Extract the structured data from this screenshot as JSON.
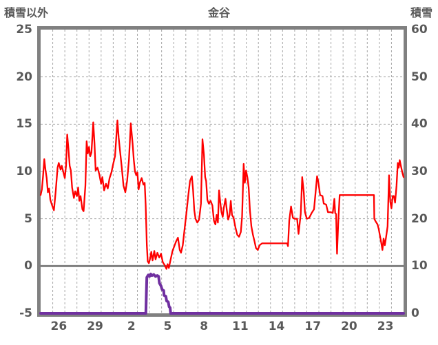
{
  "chart_data": {
    "type": "line",
    "title": "金谷",
    "left_axis": {
      "label": "積雪以外",
      "min": -5,
      "max": 25,
      "ticks": [
        25,
        20,
        15,
        10,
        5,
        0,
        -5
      ]
    },
    "right_axis": {
      "label": "積雪",
      "min": 0,
      "max": 60,
      "ticks": [
        60,
        50,
        40,
        30,
        20,
        10,
        0
      ]
    },
    "x_axis": {
      "days_total": 30,
      "tick_labels": [
        "26",
        "29",
        "2",
        "5",
        "8",
        "11",
        "14",
        "17",
        "20",
        "23"
      ],
      "tick_offsets": [
        1.5,
        4.5,
        7.5,
        10.5,
        13.5,
        16.5,
        19.5,
        22.5,
        25.5,
        28.5
      ],
      "grid_every_days": 1
    },
    "grid": {
      "on": true,
      "zero_line_left_value": 0
    },
    "colors": {
      "temperature": "#fe0000",
      "snow": "#7030a0",
      "frame": "#808080",
      "gridline": "#a6a6a6",
      "text": "#595959"
    },
    "series": [
      {
        "name": "temperature-left-axis",
        "axis": "left",
        "points": [
          [
            0,
            7.5
          ],
          [
            0.1,
            8.1
          ],
          [
            0.2,
            9.5
          ],
          [
            0.3,
            11.3
          ],
          [
            0.4,
            10.2
          ],
          [
            0.5,
            9.3
          ],
          [
            0.6,
            7.8
          ],
          [
            0.7,
            8.2
          ],
          [
            0.8,
            7.0
          ],
          [
            0.95,
            6.4
          ],
          [
            1.1,
            5.9
          ],
          [
            1.25,
            8.0
          ],
          [
            1.4,
            10.4
          ],
          [
            1.5,
            10.9
          ],
          [
            1.65,
            10.2
          ],
          [
            1.75,
            10.6
          ],
          [
            1.9,
            9.8
          ],
          [
            2.0,
            9.3
          ],
          [
            2.1,
            10.6
          ],
          [
            2.2,
            13.9
          ],
          [
            2.3,
            12.4
          ],
          [
            2.4,
            10.6
          ],
          [
            2.5,
            10.1
          ],
          [
            2.6,
            8.3
          ],
          [
            2.75,
            7.2
          ],
          [
            2.85,
            7.9
          ],
          [
            3.0,
            7.4
          ],
          [
            3.1,
            8.3
          ],
          [
            3.2,
            6.9
          ],
          [
            3.3,
            7.4
          ],
          [
            3.45,
            6.0
          ],
          [
            3.55,
            5.8
          ],
          [
            3.7,
            8.5
          ],
          [
            3.8,
            13.2
          ],
          [
            3.9,
            11.9
          ],
          [
            4.0,
            12.6
          ],
          [
            4.1,
            11.6
          ],
          [
            4.2,
            12.0
          ],
          [
            4.35,
            15.2
          ],
          [
            4.45,
            13.0
          ],
          [
            4.55,
            10.1
          ],
          [
            4.7,
            10.4
          ],
          [
            4.85,
            9.7
          ],
          [
            5.0,
            8.7
          ],
          [
            5.1,
            9.4
          ],
          [
            5.25,
            8.0
          ],
          [
            5.4,
            8.7
          ],
          [
            5.55,
            8.2
          ],
          [
            5.7,
            9.3
          ],
          [
            5.85,
            9.9
          ],
          [
            6.0,
            10.8
          ],
          [
            6.15,
            11.6
          ],
          [
            6.35,
            15.4
          ],
          [
            6.45,
            13.6
          ],
          [
            6.55,
            12.3
          ],
          [
            6.7,
            10.5
          ],
          [
            6.85,
            8.5
          ],
          [
            7.0,
            7.8
          ],
          [
            7.15,
            9.0
          ],
          [
            7.3,
            11.2
          ],
          [
            7.45,
            15.1
          ],
          [
            7.6,
            13.0
          ],
          [
            7.7,
            11.2
          ],
          [
            7.8,
            10.0
          ],
          [
            7.9,
            9.6
          ],
          [
            8.0,
            9.9
          ],
          [
            8.1,
            8.1
          ],
          [
            8.2,
            8.8
          ],
          [
            8.35,
            9.3
          ],
          [
            8.5,
            8.6
          ],
          [
            8.6,
            8.8
          ],
          [
            8.68,
            6.5
          ],
          [
            8.78,
            2.2
          ],
          [
            8.85,
            0.5
          ],
          [
            8.95,
            0.3
          ],
          [
            9.05,
            0.8
          ],
          [
            9.15,
            1.5
          ],
          [
            9.25,
            0.6
          ],
          [
            9.4,
            1.6
          ],
          [
            9.5,
            0.7
          ],
          [
            9.65,
            1.4
          ],
          [
            9.8,
            0.9
          ],
          [
            9.95,
            1.3
          ],
          [
            10.1,
            0.4
          ],
          [
            10.25,
            0.1
          ],
          [
            10.4,
            -0.3
          ],
          [
            10.5,
            0.2
          ],
          [
            10.6,
            -0.2
          ],
          [
            10.75,
            0.7
          ],
          [
            10.9,
            1.6
          ],
          [
            11.05,
            2.1
          ],
          [
            11.2,
            2.6
          ],
          [
            11.35,
            3.0
          ],
          [
            11.5,
            1.7
          ],
          [
            11.6,
            1.4
          ],
          [
            11.75,
            2.2
          ],
          [
            11.9,
            3.9
          ],
          [
            12.05,
            5.6
          ],
          [
            12.2,
            7.4
          ],
          [
            12.35,
            9.0
          ],
          [
            12.5,
            9.5
          ],
          [
            12.6,
            8.1
          ],
          [
            12.7,
            5.9
          ],
          [
            12.8,
            5.0
          ],
          [
            12.95,
            4.6
          ],
          [
            13.1,
            4.9
          ],
          [
            13.25,
            6.6
          ],
          [
            13.38,
            13.4
          ],
          [
            13.5,
            11.8
          ],
          [
            13.6,
            9.4
          ],
          [
            13.68,
            9.0
          ],
          [
            13.78,
            7.0
          ],
          [
            13.9,
            6.6
          ],
          [
            14.05,
            6.9
          ],
          [
            14.2,
            6.4
          ],
          [
            14.32,
            4.8
          ],
          [
            14.45,
            4.4
          ],
          [
            14.55,
            5.4
          ],
          [
            14.65,
            4.6
          ],
          [
            14.75,
            8.0
          ],
          [
            14.85,
            6.7
          ],
          [
            14.95,
            5.7
          ],
          [
            15.05,
            5.2
          ],
          [
            15.15,
            6.2
          ],
          [
            15.28,
            7.1
          ],
          [
            15.38,
            6.0
          ],
          [
            15.5,
            4.9
          ],
          [
            15.62,
            5.4
          ],
          [
            15.72,
            6.9
          ],
          [
            15.82,
            5.4
          ],
          [
            15.95,
            5.1
          ],
          [
            16.1,
            4.1
          ],
          [
            16.25,
            3.3
          ],
          [
            16.4,
            3.1
          ],
          [
            16.55,
            3.6
          ],
          [
            16.65,
            5.2
          ],
          [
            16.78,
            10.8
          ],
          [
            16.88,
            8.8
          ],
          [
            16.98,
            10.1
          ],
          [
            17.1,
            9.3
          ],
          [
            17.2,
            8.3
          ],
          [
            17.3,
            5.9
          ],
          [
            17.42,
            4.2
          ],
          [
            17.55,
            3.3
          ],
          [
            17.68,
            2.6
          ],
          [
            17.8,
            1.9
          ],
          [
            17.95,
            1.7
          ],
          [
            18.1,
            2.2
          ],
          [
            18.3,
            2.4
          ],
          [
            19.0,
            2.4
          ],
          [
            20.0,
            2.4
          ],
          [
            20.38,
            2.4
          ],
          [
            20.45,
            2.1
          ],
          [
            20.55,
            4.8
          ],
          [
            20.7,
            6.3
          ],
          [
            20.85,
            5.1
          ],
          [
            21.0,
            5.0
          ],
          [
            21.2,
            5.0
          ],
          [
            21.32,
            3.4
          ],
          [
            21.5,
            5.5
          ],
          [
            21.62,
            9.4
          ],
          [
            21.75,
            7.8
          ],
          [
            21.85,
            5.7
          ],
          [
            22.0,
            5.0
          ],
          [
            22.2,
            5.1
          ],
          [
            22.4,
            5.6
          ],
          [
            22.6,
            6.0
          ],
          [
            22.85,
            9.5
          ],
          [
            22.95,
            8.9
          ],
          [
            23.1,
            7.5
          ],
          [
            23.3,
            7.4
          ],
          [
            23.4,
            6.6
          ],
          [
            23.6,
            6.5
          ],
          [
            23.75,
            5.7
          ],
          [
            24.0,
            5.7
          ],
          [
            24.15,
            5.6
          ],
          [
            24.28,
            7.1
          ],
          [
            24.35,
            5.6
          ],
          [
            24.42,
            5.5
          ],
          [
            24.5,
            1.3
          ],
          [
            24.6,
            4.5
          ],
          [
            24.72,
            7.5
          ],
          [
            25.0,
            7.5
          ],
          [
            26.0,
            7.5
          ],
          [
            27.0,
            7.5
          ],
          [
            27.55,
            7.5
          ],
          [
            27.58,
            5.0
          ],
          [
            27.7,
            4.7
          ],
          [
            27.85,
            4.4
          ],
          [
            27.95,
            3.9
          ],
          [
            28.05,
            3.2
          ],
          [
            28.15,
            2.5
          ],
          [
            28.25,
            1.7
          ],
          [
            28.35,
            2.9
          ],
          [
            28.45,
            2.2
          ],
          [
            28.55,
            3.0
          ],
          [
            28.68,
            4.2
          ],
          [
            28.8,
            9.6
          ],
          [
            28.9,
            6.8
          ],
          [
            29.0,
            6.1
          ],
          [
            29.1,
            7.4
          ],
          [
            29.2,
            7.4
          ],
          [
            29.3,
            6.7
          ],
          [
            29.42,
            8.5
          ],
          [
            29.52,
            10.9
          ],
          [
            29.6,
            10.4
          ],
          [
            29.68,
            11.2
          ],
          [
            29.78,
            10.6
          ],
          [
            29.9,
            9.9
          ],
          [
            30,
            9.4
          ]
        ]
      },
      {
        "name": "snow-depth-right-axis",
        "axis": "right",
        "points": [
          [
            0,
            0
          ],
          [
            8.7,
            0
          ],
          [
            8.74,
            4.0
          ],
          [
            8.78,
            7.6
          ],
          [
            8.9,
            8.1
          ],
          [
            9.0,
            7.8
          ],
          [
            9.1,
            8.3
          ],
          [
            9.2,
            8.0
          ],
          [
            9.35,
            8.2
          ],
          [
            9.5,
            7.8
          ],
          [
            9.65,
            8.0
          ],
          [
            9.75,
            7.8
          ],
          [
            9.82,
            6.4
          ],
          [
            9.95,
            5.8
          ],
          [
            10.05,
            5.0
          ],
          [
            10.17,
            4.8
          ],
          [
            10.2,
            3.8
          ],
          [
            10.35,
            3.6
          ],
          [
            10.42,
            2.6
          ],
          [
            10.55,
            2.4
          ],
          [
            10.62,
            1.4
          ],
          [
            10.7,
            1.2
          ],
          [
            10.75,
            0
          ],
          [
            30,
            0
          ]
        ]
      }
    ]
  }
}
